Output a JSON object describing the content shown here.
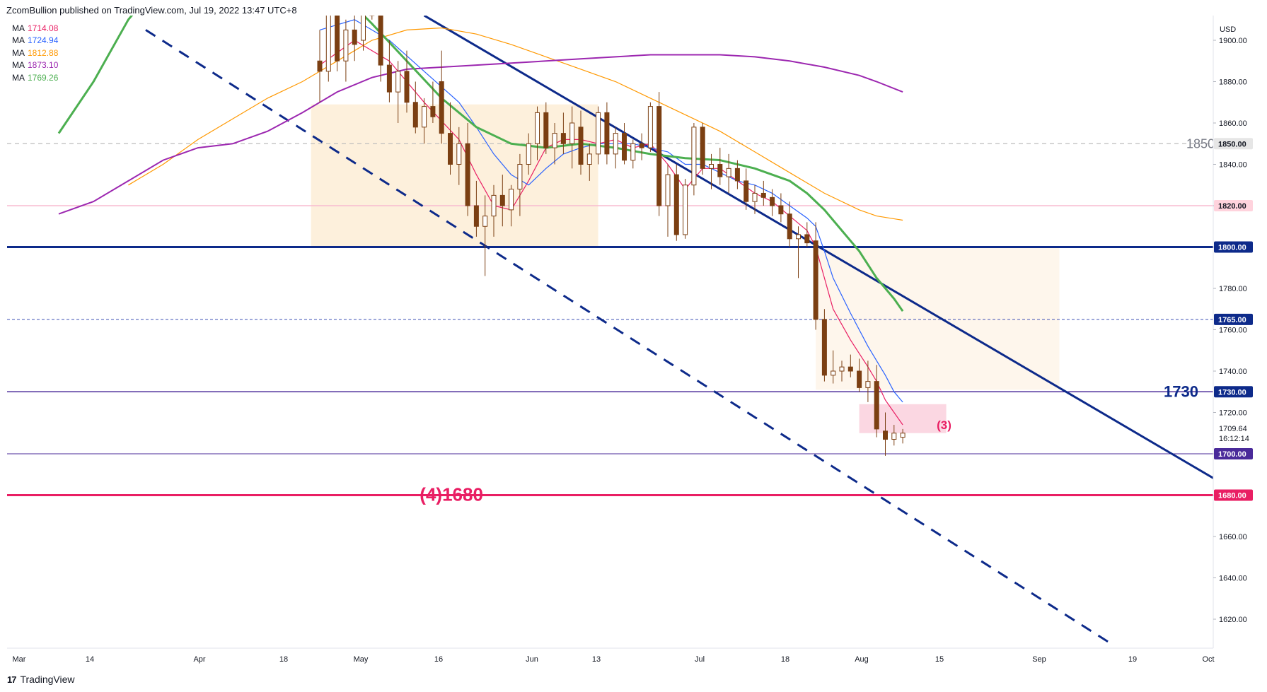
{
  "header": {
    "publisher_text": "ZcomBullion published on TradingView.com, Jul 19, 2022 13:47 UTC+8"
  },
  "legend": [
    {
      "label": "MA",
      "value": "1714.08",
      "color": "#e91e63"
    },
    {
      "label": "MA",
      "value": "1724.94",
      "color": "#2962ff"
    },
    {
      "label": "MA",
      "value": "1812.88",
      "color": "#ff9800"
    },
    {
      "label": "MA",
      "value": "1873.10",
      "color": "#9c27b0"
    },
    {
      "label": "MA",
      "value": "1769.26",
      "color": "#4caf50"
    }
  ],
  "footer": {
    "logo": "17",
    "brand": "TradingView"
  },
  "chart_data": {
    "type": "candlestick",
    "instrument_currency": "USD",
    "y_range": [
      1605,
      1910
    ],
    "y_ticks": [
      "1900.00",
      "1880.00",
      "1860.00",
      "1840.00",
      "1820.00",
      "1800.00",
      "1780.00",
      "1760.00",
      "1740.00",
      "1720.00",
      "1700.00",
      "1680.00",
      "1660.00",
      "1640.00",
      "1620.00"
    ],
    "x_ticks": [
      "Mar",
      "14",
      "Apr",
      "18",
      "May",
      "16",
      "Jun",
      "13",
      "Jul",
      "18",
      "Aug",
      "15",
      "Sep",
      "19",
      "Oct"
    ],
    "price_labels": [
      {
        "text": "1850.00",
        "price": 1850,
        "color": "#e6e6e6",
        "text_color": "#131722"
      },
      {
        "text": "1820.00",
        "price": 1820,
        "color": "#ffd3dd",
        "text_color": "#131722"
      },
      {
        "text": "1800.00",
        "price": 1800,
        "color": "#0d2a8a",
        "text_color": "#ffffff"
      },
      {
        "text": "1765.00",
        "price": 1765,
        "color": "#0d2a8a",
        "text_color": "#ffffff"
      },
      {
        "text": "1730.00",
        "price": 1730,
        "color": "#0d2a8a",
        "text_color": "#ffffff"
      },
      {
        "text": "1700.00",
        "price": 1700,
        "color": "#4a2a9a",
        "text_color": "#ffffff"
      },
      {
        "text": "1680.00",
        "price": 1680,
        "color": "#e91e63",
        "text_color": "#ffffff"
      }
    ],
    "last_price": "1709.64",
    "countdown": "16:12:14",
    "annotations": [
      {
        "text": "1850",
        "price": 1850,
        "color": "#787b86"
      },
      {
        "text": "1730",
        "price": 1730,
        "color": "#0d2a8a"
      },
      {
        "text": "(3)",
        "price": 1714,
        "color": "#e91e63"
      },
      {
        "text": "(4)1680",
        "price": 1680,
        "color": "#e91e63"
      }
    ],
    "horizontal_levels": [
      {
        "price": 1850,
        "style": "dashed",
        "color": "#bdbdbd"
      },
      {
        "price": 1820,
        "style": "solid",
        "color": "#f8bbd0"
      },
      {
        "price": 1800,
        "style": "solid-thick",
        "color": "#0d2a8a"
      },
      {
        "price": 1765,
        "style": "dotted",
        "color": "#3f51b5"
      },
      {
        "price": 1730,
        "style": "solid",
        "color": "#4a2a9a"
      },
      {
        "price": 1700,
        "style": "solid-thin",
        "color": "#4a2a9a"
      },
      {
        "price": 1680,
        "style": "solid-thick",
        "color": "#e91e63"
      }
    ],
    "candles": [
      [
        1890,
        1905,
        1870,
        1885
      ],
      [
        1885,
        1920,
        1880,
        1915
      ],
      [
        1915,
        1925,
        1885,
        1890
      ],
      [
        1890,
        1910,
        1880,
        1905
      ],
      [
        1905,
        1915,
        1890,
        1898
      ],
      [
        1900,
        1935,
        1895,
        1930
      ],
      [
        1930,
        1945,
        1910,
        1912
      ],
      [
        1912,
        1925,
        1880,
        1888
      ],
      [
        1888,
        1900,
        1870,
        1875
      ],
      [
        1875,
        1890,
        1860,
        1885
      ],
      [
        1885,
        1895,
        1865,
        1870
      ],
      [
        1870,
        1880,
        1855,
        1858
      ],
      [
        1858,
        1872,
        1850,
        1868
      ],
      [
        1868,
        1880,
        1860,
        1863
      ],
      [
        1880,
        1895,
        1850,
        1855
      ],
      [
        1855,
        1870,
        1835,
        1840
      ],
      [
        1840,
        1858,
        1830,
        1850
      ],
      [
        1850,
        1860,
        1815,
        1820
      ],
      [
        1820,
        1832,
        1805,
        1810
      ],
      [
        1810,
        1825,
        1786,
        1815
      ],
      [
        1815,
        1830,
        1805,
        1825
      ],
      [
        1825,
        1835,
        1810,
        1820
      ],
      [
        1818,
        1830,
        1810,
        1828
      ],
      [
        1828,
        1845,
        1815,
        1840
      ],
      [
        1840,
        1855,
        1835,
        1850
      ],
      [
        1850,
        1868,
        1842,
        1865
      ],
      [
        1865,
        1870,
        1845,
        1848
      ],
      [
        1848,
        1860,
        1840,
        1855
      ],
      [
        1855,
        1865,
        1845,
        1850
      ],
      [
        1850,
        1868,
        1838,
        1860
      ],
      [
        1858,
        1866,
        1835,
        1840
      ],
      [
        1840,
        1850,
        1832,
        1845
      ],
      [
        1845,
        1868,
        1840,
        1865
      ],
      [
        1865,
        1870,
        1840,
        1845
      ],
      [
        1845,
        1858,
        1838,
        1855
      ],
      [
        1855,
        1860,
        1840,
        1842
      ],
      [
        1842,
        1852,
        1838,
        1850
      ],
      [
        1850,
        1855,
        1842,
        1848
      ],
      [
        1848,
        1870,
        1846,
        1868
      ],
      [
        1868,
        1875,
        1815,
        1820
      ],
      [
        1820,
        1840,
        1805,
        1835
      ],
      [
        1835,
        1840,
        1803,
        1806
      ],
      [
        1806,
        1833,
        1804,
        1830
      ],
      [
        1830,
        1860,
        1825,
        1858
      ],
      [
        1858,
        1860,
        1835,
        1838
      ],
      [
        1838,
        1845,
        1828,
        1840
      ],
      [
        1840,
        1848,
        1830,
        1834
      ],
      [
        1834,
        1845,
        1826,
        1838
      ],
      [
        1838,
        1842,
        1828,
        1832
      ],
      [
        1832,
        1838,
        1818,
        1822
      ],
      [
        1822,
        1830,
        1816,
        1826
      ],
      [
        1826,
        1832,
        1820,
        1824
      ],
      [
        1824,
        1828,
        1815,
        1820
      ],
      [
        1820,
        1826,
        1812,
        1816
      ],
      [
        1816,
        1822,
        1800,
        1804
      ],
      [
        1804,
        1810,
        1785,
        1806
      ],
      [
        1806,
        1812,
        1800,
        1802
      ],
      [
        1803,
        1812,
        1760,
        1765
      ],
      [
        1765,
        1770,
        1735,
        1738
      ],
      [
        1738,
        1750,
        1734,
        1740
      ],
      [
        1740,
        1745,
        1735,
        1742
      ],
      [
        1742,
        1748,
        1737,
        1740
      ],
      [
        1740,
        1746,
        1730,
        1732
      ],
      [
        1732,
        1745,
        1725,
        1735
      ],
      [
        1735,
        1743,
        1708,
        1712
      ],
      [
        1711,
        1720,
        1699,
        1707
      ],
      [
        1707,
        1714,
        1704,
        1710
      ],
      [
        1708,
        1712,
        1705,
        1710
      ]
    ],
    "moving_averages": [
      {
        "name": "MA",
        "color": "#e91e63",
        "points": [
          [
            0,
            1888
          ],
          [
            4,
            1900
          ],
          [
            8,
            1890
          ],
          [
            12,
            1870
          ],
          [
            16,
            1852
          ],
          [
            18,
            1835
          ],
          [
            20,
            1820
          ],
          [
            22,
            1818
          ],
          [
            24,
            1832
          ],
          [
            26,
            1848
          ],
          [
            28,
            1852
          ],
          [
            30,
            1852
          ],
          [
            32,
            1850
          ],
          [
            34,
            1852
          ],
          [
            36,
            1848
          ],
          [
            38,
            1850
          ],
          [
            40,
            1840
          ],
          [
            42,
            1828
          ],
          [
            44,
            1838
          ],
          [
            46,
            1838
          ],
          [
            48,
            1832
          ],
          [
            50,
            1826
          ],
          [
            52,
            1822
          ],
          [
            54,
            1815
          ],
          [
            56,
            1808
          ],
          [
            57,
            1800
          ],
          [
            58,
            1785
          ],
          [
            59,
            1770
          ],
          [
            61,
            1755
          ],
          [
            63,
            1742
          ],
          [
            64,
            1735
          ],
          [
            65,
            1726
          ],
          [
            66,
            1720
          ],
          [
            67,
            1714
          ]
        ]
      },
      {
        "name": "MA",
        "color": "#2962ff",
        "points": [
          [
            0,
            1905
          ],
          [
            4,
            1910
          ],
          [
            8,
            1900
          ],
          [
            12,
            1885
          ],
          [
            16,
            1870
          ],
          [
            18,
            1858
          ],
          [
            20,
            1845
          ],
          [
            22,
            1835
          ],
          [
            24,
            1830
          ],
          [
            26,
            1838
          ],
          [
            28,
            1845
          ],
          [
            30,
            1848
          ],
          [
            32,
            1850
          ],
          [
            34,
            1850
          ],
          [
            36,
            1850
          ],
          [
            38,
            1848
          ],
          [
            40,
            1846
          ],
          [
            42,
            1840
          ],
          [
            44,
            1840
          ],
          [
            46,
            1836
          ],
          [
            48,
            1832
          ],
          [
            50,
            1830
          ],
          [
            52,
            1826
          ],
          [
            54,
            1820
          ],
          [
            56,
            1814
          ],
          [
            57,
            1810
          ],
          [
            58,
            1798
          ],
          [
            59,
            1785
          ],
          [
            61,
            1768
          ],
          [
            63,
            1752
          ],
          [
            64,
            1745
          ],
          [
            65,
            1738
          ],
          [
            66,
            1730
          ],
          [
            67,
            1725
          ]
        ]
      },
      {
        "name": "MA",
        "color": "#ff9800",
        "points": [
          [
            -22,
            1830
          ],
          [
            -18,
            1840
          ],
          [
            -14,
            1852
          ],
          [
            -10,
            1862
          ],
          [
            -6,
            1872
          ],
          [
            -2,
            1880
          ],
          [
            2,
            1890
          ],
          [
            6,
            1900
          ],
          [
            10,
            1905
          ],
          [
            14,
            1906
          ],
          [
            18,
            1903
          ],
          [
            22,
            1898
          ],
          [
            26,
            1892
          ],
          [
            30,
            1886
          ],
          [
            34,
            1880
          ],
          [
            38,
            1872
          ],
          [
            42,
            1864
          ],
          [
            46,
            1856
          ],
          [
            50,
            1846
          ],
          [
            54,
            1836
          ],
          [
            58,
            1826
          ],
          [
            62,
            1818
          ],
          [
            64,
            1815
          ],
          [
            67,
            1813
          ]
        ]
      },
      {
        "name": "MA",
        "color": "#9c27b0",
        "points": [
          [
            -30,
            1816
          ],
          [
            -26,
            1822
          ],
          [
            -22,
            1832
          ],
          [
            -18,
            1842
          ],
          [
            -14,
            1848
          ],
          [
            -10,
            1850
          ],
          [
            -6,
            1856
          ],
          [
            -2,
            1865
          ],
          [
            2,
            1875
          ],
          [
            6,
            1882
          ],
          [
            10,
            1886
          ],
          [
            14,
            1887
          ],
          [
            18,
            1888
          ],
          [
            22,
            1889
          ],
          [
            26,
            1890
          ],
          [
            30,
            1891
          ],
          [
            34,
            1892
          ],
          [
            38,
            1893
          ],
          [
            42,
            1893
          ],
          [
            46,
            1893
          ],
          [
            50,
            1892
          ],
          [
            54,
            1890
          ],
          [
            58,
            1887
          ],
          [
            62,
            1883
          ],
          [
            64,
            1880
          ],
          [
            67,
            1875
          ]
        ]
      },
      {
        "name": "MA",
        "color": "#4caf50",
        "points": [
          [
            -30,
            1855
          ],
          [
            -26,
            1880
          ],
          [
            -22,
            1910
          ],
          [
            -18,
            1930
          ],
          [
            2,
            1925
          ],
          [
            6,
            1908
          ],
          [
            10,
            1890
          ],
          [
            14,
            1872
          ],
          [
            18,
            1858
          ],
          [
            22,
            1850
          ],
          [
            26,
            1848
          ],
          [
            30,
            1850
          ],
          [
            34,
            1848
          ],
          [
            38,
            1845
          ],
          [
            42,
            1843
          ],
          [
            46,
            1842
          ],
          [
            50,
            1838
          ],
          [
            54,
            1832
          ],
          [
            56,
            1826
          ],
          [
            58,
            1818
          ],
          [
            60,
            1808
          ],
          [
            62,
            1798
          ],
          [
            64,
            1785
          ],
          [
            66,
            1775
          ],
          [
            67,
            1769
          ]
        ]
      }
    ],
    "trendlines": [
      {
        "style": "solid",
        "color": "#0d2a8a",
        "from": [
          12,
          1912
        ],
        "to": [
          104,
          1685
        ]
      },
      {
        "style": "dashed",
        "color": "#0d2a8a",
        "from": [
          -20,
          1905
        ],
        "to": [
          91,
          1608
        ]
      }
    ],
    "zones": [
      {
        "color": "#fdf0dc",
        "from": [
          -1,
          1869
        ],
        "to": [
          32,
          1800
        ]
      },
      {
        "color": "#fef6ec",
        "from": [
          57,
          1800
        ],
        "to": [
          85,
          1731
        ]
      },
      {
        "color": "#fbd7e2",
        "from": [
          62,
          1724
        ],
        "to": [
          72,
          1710
        ]
      }
    ]
  }
}
